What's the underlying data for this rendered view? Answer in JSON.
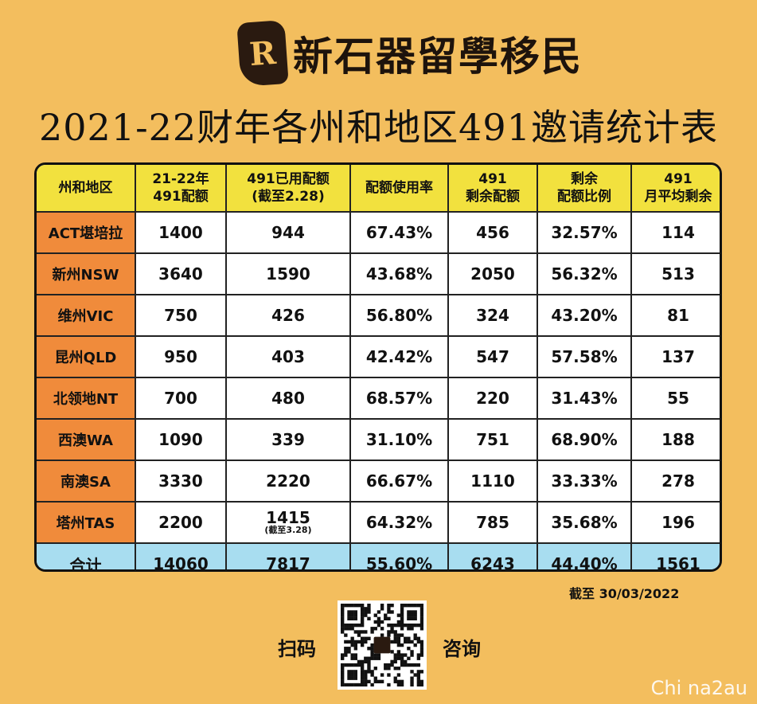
{
  "logo": {
    "mark": "R",
    "text": "新石器留學移民"
  },
  "title": "2021-22财年各州和地区491邀请统计表",
  "table": {
    "headers": [
      {
        "l1": "州和地区",
        "l2": ""
      },
      {
        "l1": "21-22年",
        "l2": "491配额"
      },
      {
        "l1": "491已用配额",
        "l2": "(截至2.28)"
      },
      {
        "l1": "配额使用率",
        "l2": ""
      },
      {
        "l1": "491",
        "l2": "剩余配额"
      },
      {
        "l1": "剩余",
        "l2": "配额比例"
      },
      {
        "l1": "491",
        "l2": "月平均剩余"
      }
    ],
    "rows": [
      {
        "region": "ACT堪培拉",
        "quota": "1400",
        "used": "944",
        "used_note": "",
        "rate": "67.43%",
        "remain": "456",
        "remain_ratio": "32.57%",
        "monthly": "114"
      },
      {
        "region": "新州NSW",
        "quota": "3640",
        "used": "1590",
        "used_note": "",
        "rate": "43.68%",
        "remain": "2050",
        "remain_ratio": "56.32%",
        "monthly": "513"
      },
      {
        "region": "维州VIC",
        "quota": "750",
        "used": "426",
        "used_note": "",
        "rate": "56.80%",
        "remain": "324",
        "remain_ratio": "43.20%",
        "monthly": "81"
      },
      {
        "region": "昆州QLD",
        "quota": "950",
        "used": "403",
        "used_note": "",
        "rate": "42.42%",
        "remain": "547",
        "remain_ratio": "57.58%",
        "monthly": "137"
      },
      {
        "region": "北领地NT",
        "quota": "700",
        "used": "480",
        "used_note": "",
        "rate": "68.57%",
        "remain": "220",
        "remain_ratio": "31.43%",
        "monthly": "55"
      },
      {
        "region": "西澳WA",
        "quota": "1090",
        "used": "339",
        "used_note": "",
        "rate": "31.10%",
        "remain": "751",
        "remain_ratio": "68.90%",
        "monthly": "188"
      },
      {
        "region": "南澳SA",
        "quota": "3330",
        "used": "2220",
        "used_note": "",
        "rate": "66.67%",
        "remain": "1110",
        "remain_ratio": "33.33%",
        "monthly": "278"
      },
      {
        "region": "塔州TAS",
        "quota": "2200",
        "used": "1415",
        "used_note": "(截至3.28)",
        "rate": "64.32%",
        "remain": "785",
        "remain_ratio": "35.68%",
        "monthly": "196"
      }
    ],
    "total": {
      "region": "合计",
      "quota": "14060",
      "used": "7817",
      "rate": "55.60%",
      "remain": "6243",
      "remain_ratio": "44.40%",
      "monthly": "1561"
    }
  },
  "as_of": "截至  30/03/2022",
  "footer": {
    "scan": "扫码",
    "consult": "咨询"
  },
  "watermark": "Chi na2au",
  "colors": {
    "background": "#F3BE5E",
    "header": "#F2E13E",
    "region": "#F08B3B",
    "total": "#A8DDF0"
  }
}
